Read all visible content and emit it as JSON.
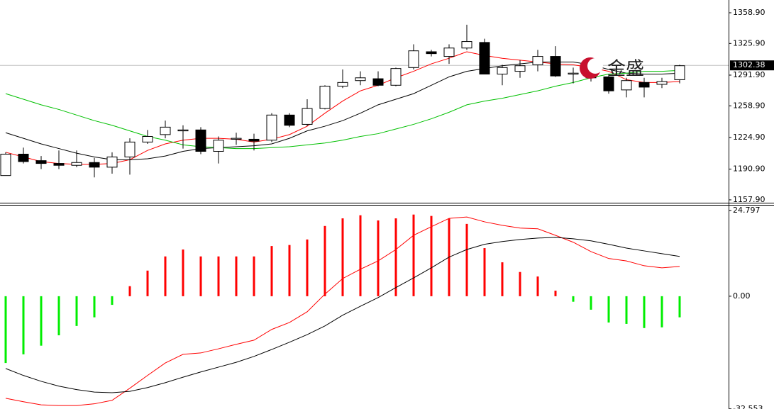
{
  "chart_data": [
    {
      "type": "candlestick",
      "ylim": [
        1154.8,
        1372.6
      ],
      "yticks": [
        {
          "value": 1358.9,
          "label": "1358.90"
        },
        {
          "value": 1325.9,
          "label": "1325.90"
        },
        {
          "value": 1291.9,
          "label": "1291.90"
        },
        {
          "value": 1258.9,
          "label": "1258.90"
        },
        {
          "value": 1224.9,
          "label": "1224.90"
        },
        {
          "value": 1190.9,
          "label": "1190.90"
        },
        {
          "value": 1157.9,
          "label": "1157.90"
        }
      ],
      "last_price": 1302.38,
      "watermark": "金盛",
      "up_color": "#ffffff",
      "down_color": "#000000",
      "open": [
        1184,
        1207,
        1200,
        1197,
        1195,
        1198,
        1193,
        1204,
        1220,
        1228,
        1232,
        1233,
        1210,
        1223,
        1223,
        1222,
        1249,
        1239,
        1256,
        1280,
        1286,
        1288,
        1281,
        1300,
        1317,
        1312,
        1321,
        1327,
        1293,
        1296,
        1303,
        1312,
        1293,
        1300,
        1290,
        1276,
        1284,
        1282,
        1287
      ],
      "high": [
        1209,
        1214,
        1205,
        1211,
        1211,
        1203,
        1209,
        1224,
        1233,
        1243,
        1238,
        1236,
        1226,
        1230,
        1229,
        1251,
        1251,
        1266,
        1281,
        1298,
        1296,
        1296,
        1300,
        1325,
        1319,
        1325,
        1346,
        1331,
        1303,
        1308,
        1319,
        1323,
        1300,
        1306,
        1293,
        1289,
        1289,
        1289,
        1303
      ],
      "low": [
        1184,
        1197,
        1191,
        1191,
        1193,
        1182,
        1186,
        1185,
        1218,
        1224,
        1213,
        1207,
        1197,
        1217,
        1211,
        1220,
        1236,
        1237,
        1255,
        1278,
        1281,
        1280,
        1280,
        1298,
        1312,
        1304,
        1319,
        1293,
        1281,
        1289,
        1296,
        1290,
        1283,
        1285,
        1272,
        1268,
        1268,
        1278,
        1283
      ],
      "close": [
        1207,
        1199,
        1197,
        1195,
        1198,
        1193,
        1204,
        1220,
        1226,
        1236,
        1233,
        1210,
        1222,
        1224,
        1221,
        1249,
        1238,
        1256,
        1280,
        1284,
        1289,
        1281,
        1299,
        1318,
        1315,
        1321,
        1328,
        1293,
        1300,
        1302,
        1312,
        1291,
        1294,
        1289,
        1275,
        1286,
        1279,
        1285,
        1302
      ],
      "lines": [
        {
          "color": "#ff0000",
          "values": [
            1209,
            1204,
            1199,
            1197,
            1196,
            1196,
            1197,
            1201,
            1211,
            1218,
            1222,
            1224,
            1224,
            1223,
            1220,
            1223,
            1228,
            1237,
            1251,
            1264,
            1275,
            1281,
            1289,
            1296,
            1304,
            1310,
            1317,
            1313,
            1310,
            1308,
            1306,
            1304,
            1303,
            1300,
            1296,
            1287,
            1284,
            1284,
            1285
          ]
        },
        {
          "color": "#000000",
          "values": [
            1230,
            1224,
            1218,
            1213,
            1208,
            1204,
            1201,
            1201,
            1202,
            1205,
            1210,
            1213,
            1214,
            1215,
            1216,
            1218,
            1224,
            1232,
            1237,
            1243,
            1251,
            1260,
            1266,
            1272,
            1281,
            1290,
            1296,
            1299,
            1302,
            1304,
            1306,
            1306,
            1306,
            1303,
            1298,
            1294,
            1293,
            1293,
            1294
          ]
        },
        {
          "color": "#00c000",
          "values": [
            1272,
            1266,
            1260,
            1255,
            1249,
            1243,
            1238,
            1232,
            1226,
            1222,
            1217,
            1215,
            1214,
            1213,
            1213,
            1214,
            1215,
            1217,
            1219,
            1222,
            1226,
            1229,
            1234,
            1239,
            1245,
            1252,
            1260,
            1264,
            1267,
            1271,
            1275,
            1280,
            1284,
            1289,
            1293,
            1294,
            1296,
            1296,
            1297
          ]
        }
      ]
    },
    {
      "type": "macd",
      "ylim": [
        -32.6,
        26.2
      ],
      "yticks": [
        24.797,
        {
          "value": 0,
          "label": "0.00"
        },
        -32.553
      ],
      "positive_color": "#ff0000",
      "negative_color": "#00ee00",
      "values": [
        -19.3,
        -16.8,
        -14.3,
        -11.3,
        -8.6,
        -6.1,
        -2.5,
        2.9,
        7.4,
        11.5,
        13.5,
        11.5,
        11.5,
        11.5,
        11.5,
        14.5,
        14.8,
        16.4,
        20.3,
        22.5,
        23.4,
        21.9,
        22.5,
        23.6,
        23.2,
        22.5,
        20.9,
        13.9,
        9.8,
        7.0,
        5.7,
        1.6,
        -1.6,
        -3.9,
        -7.6,
        -8.0,
        -9.2,
        -9.0,
        -6.1
      ],
      "lines": [
        {
          "color": "#ff0000",
          "values": [
            -29.5,
            -30.5,
            -31.4,
            -31.6,
            -31.6,
            -31.1,
            -30.1,
            -26.6,
            -22.9,
            -19.3,
            -16.8,
            -16.4,
            -15.2,
            -13.9,
            -12.7,
            -9.6,
            -7.6,
            -4.5,
            0.6,
            5.1,
            7.8,
            10.2,
            13.5,
            17.6,
            20.1,
            22.5,
            22.9,
            21.5,
            20.5,
            19.7,
            19.5,
            17.6,
            15.6,
            12.9,
            10.9,
            10.2,
            8.8,
            8.2,
            8.6
          ]
        },
        {
          "color": "#000000",
          "values": [
            -20.9,
            -22.9,
            -24.6,
            -26.0,
            -27.0,
            -27.7,
            -27.9,
            -27.5,
            -26.4,
            -25.0,
            -23.4,
            -21.9,
            -20.5,
            -19.1,
            -17.4,
            -15.4,
            -13.3,
            -11.1,
            -8.6,
            -5.5,
            -2.9,
            -0.4,
            2.5,
            5.3,
            8.2,
            11.3,
            13.5,
            15.0,
            15.8,
            16.4,
            16.8,
            17.0,
            16.6,
            16.0,
            15.0,
            13.9,
            13.1,
            12.3,
            11.5
          ]
        }
      ]
    }
  ]
}
